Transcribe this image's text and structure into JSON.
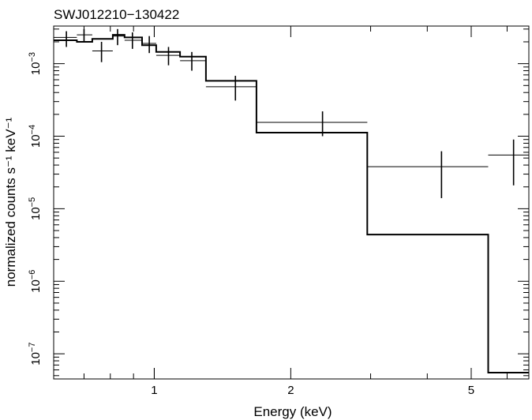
{
  "chart_data": {
    "type": "line",
    "title": "SWJ012210−130422",
    "xlabel": "Energy (keV)",
    "ylabel": "normalized counts s⁻¹ keV⁻¹",
    "xscale": "log",
    "yscale": "log",
    "xlim": [
      0.6,
      6.7
    ],
    "ylim": [
      4.5e-08,
      0.0033
    ],
    "grid": false,
    "x_ticks": [
      {
        "value": 1,
        "label": "1"
      },
      {
        "value": 2,
        "label": "2"
      },
      {
        "value": 5,
        "label": "5"
      }
    ],
    "y_ticks": [
      {
        "value": 1e-07,
        "base": "10",
        "exp": "−7"
      },
      {
        "value": 1e-06,
        "base": "10",
        "exp": "−6"
      },
      {
        "value": 1e-05,
        "base": "10",
        "exp": "−5"
      },
      {
        "value": 0.0001,
        "base": "10",
        "exp": "−4"
      },
      {
        "value": 0.001,
        "base": "10",
        "exp": "−3"
      }
    ],
    "series": [
      {
        "kind": "data",
        "points": [
          {
            "x": 0.64,
            "xlo": 0.6,
            "xhi": 0.675,
            "y": 0.0023,
            "ylo": 0.0017,
            "yhi": 0.0028
          },
          {
            "x": 0.7,
            "xlo": 0.675,
            "xhi": 0.73,
            "y": 0.0025,
            "ylo": 0.002,
            "yhi": 0.003
          },
          {
            "x": 0.765,
            "xlo": 0.73,
            "xhi": 0.81,
            "y": 0.0015,
            "ylo": 0.00105,
            "yhi": 0.002
          },
          {
            "x": 0.83,
            "xlo": 0.81,
            "xhi": 0.86,
            "y": 0.0024,
            "ylo": 0.0018,
            "yhi": 0.003
          },
          {
            "x": 0.895,
            "xlo": 0.86,
            "xhi": 0.94,
            "y": 0.0021,
            "ylo": 0.0016,
            "yhi": 0.0027
          },
          {
            "x": 0.975,
            "xlo": 0.94,
            "xhi": 1.01,
            "y": 0.0019,
            "ylo": 0.0014,
            "yhi": 0.0024
          },
          {
            "x": 1.075,
            "xlo": 1.01,
            "xhi": 1.14,
            "y": 0.0013,
            "ylo": 0.00095,
            "yhi": 0.0017
          },
          {
            "x": 1.21,
            "xlo": 1.14,
            "xhi": 1.3,
            "y": 0.0011,
            "ylo": 0.0008,
            "yhi": 0.00145
          },
          {
            "x": 1.51,
            "xlo": 1.3,
            "xhi": 1.68,
            "y": 0.00048,
            "ylo": 0.00031,
            "yhi": 0.00068
          },
          {
            "x": 2.35,
            "xlo": 1.68,
            "xhi": 2.95,
            "y": 0.000155,
            "ylo": 0.0001,
            "yhi": 0.00022
          },
          {
            "x": 4.3,
            "xlo": 2.95,
            "xhi": 5.45,
            "y": 3.8e-05,
            "ylo": 1.4e-05,
            "yhi": 6.2e-05
          },
          {
            "x": 6.2,
            "xlo": 5.45,
            "xhi": 6.7,
            "y": 5.5e-05,
            "ylo": 2.1e-05,
            "yhi": 9e-05
          }
        ]
      },
      {
        "kind": "model",
        "steps": [
          {
            "x0": 0.6,
            "x1": 0.675,
            "y": 0.0021
          },
          {
            "x0": 0.675,
            "x1": 0.73,
            "y": 0.002
          },
          {
            "x0": 0.73,
            "x1": 0.81,
            "y": 0.0022
          },
          {
            "x0": 0.81,
            "x1": 0.86,
            "y": 0.0025
          },
          {
            "x0": 0.86,
            "x1": 0.94,
            "y": 0.0023
          },
          {
            "x0": 0.94,
            "x1": 1.01,
            "y": 0.0018
          },
          {
            "x0": 1.01,
            "x1": 1.14,
            "y": 0.00145
          },
          {
            "x0": 1.14,
            "x1": 1.3,
            "y": 0.00125
          },
          {
            "x0": 1.3,
            "x1": 1.68,
            "y": 0.00058
          },
          {
            "x0": 1.68,
            "x1": 2.95,
            "y": 0.000112
          },
          {
            "x0": 2.95,
            "x1": 5.45,
            "y": 4.4e-06
          },
          {
            "x0": 5.45,
            "x1": 6.7,
            "y": 5.5e-08
          }
        ]
      }
    ]
  }
}
